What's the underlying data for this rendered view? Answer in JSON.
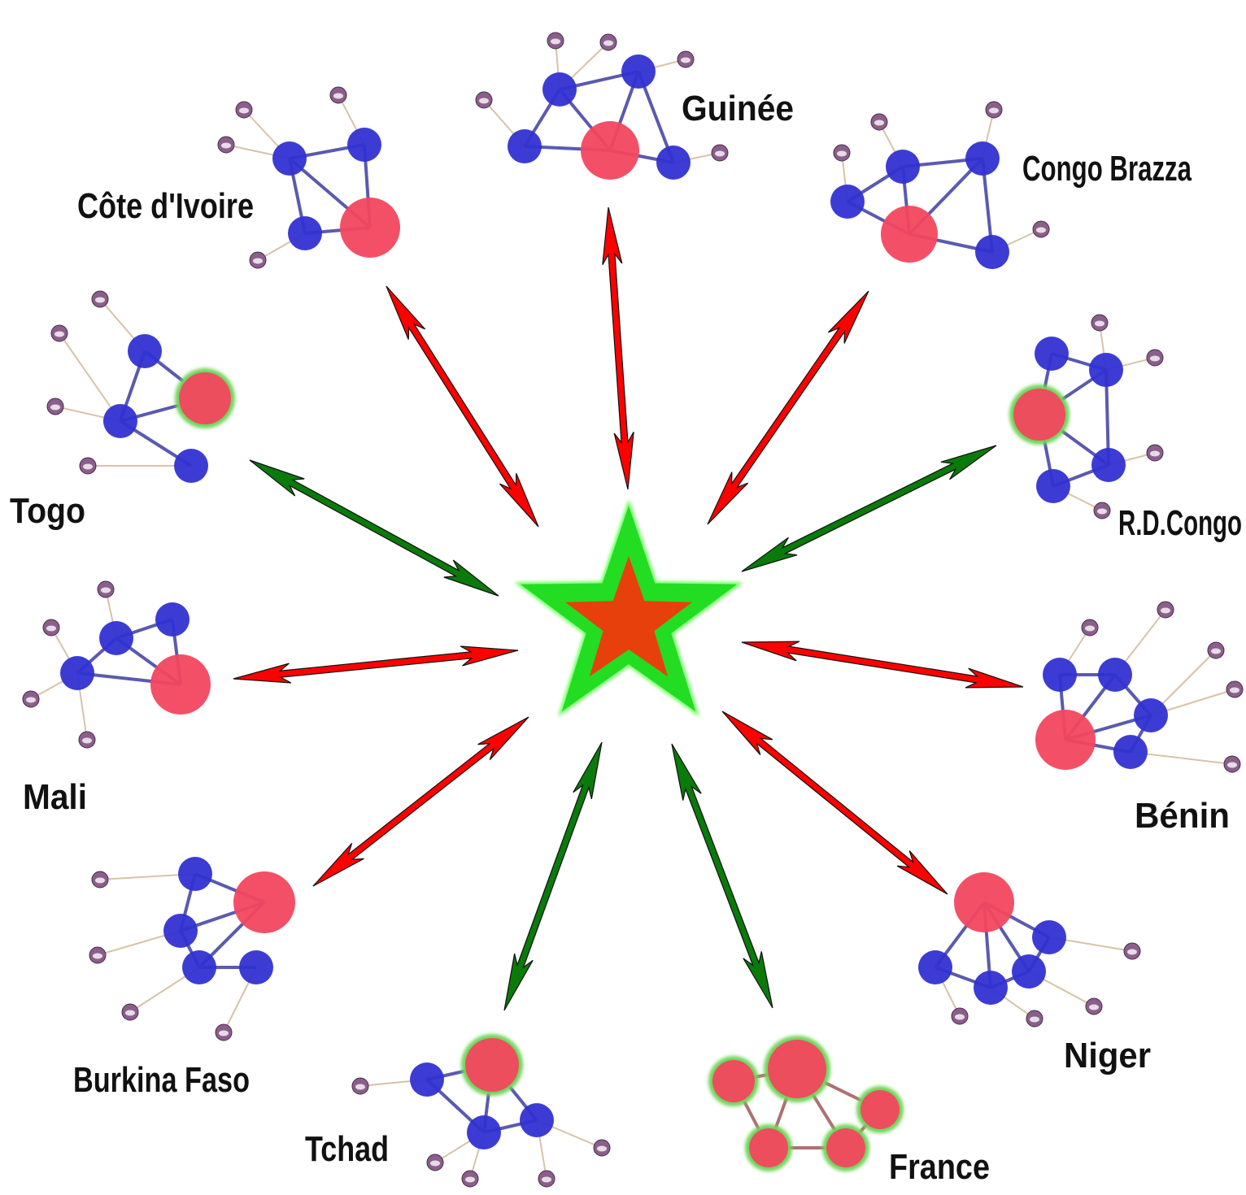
{
  "countries": [
    "Guinée",
    "Côte d'Ivoire",
    "Congo Brazza",
    "R.D.Congo",
    "Bénin",
    "Niger",
    "France",
    "Tchad",
    "Burkina Faso",
    "Mali",
    "Togo"
  ]
}
